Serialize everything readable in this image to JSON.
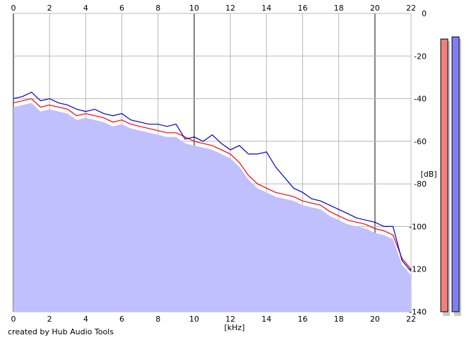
{
  "credit": "created by Hub Audio Tools",
  "colors": {
    "background": "#ffffff",
    "fill": "#c0c0ff",
    "grid_major": "#808080",
    "grid_minor": "#b8b8b8",
    "left_channel": "#ff0000",
    "right_channel": "#0000cc",
    "meter_left": "#f08080",
    "meter_right": "#8080f0"
  },
  "meters": {
    "left_level_db": -12,
    "right_level_db": -11
  },
  "chart_data": {
    "type": "area",
    "xlabel": "[kHz]",
    "ylabel": "[dB]",
    "xlim": [
      0,
      22
    ],
    "ylim": [
      -140,
      0
    ],
    "x_ticks": [
      "0",
      "2",
      "4",
      "6",
      "8",
      "10",
      "12",
      "14",
      "16",
      "18",
      "20",
      "22"
    ],
    "y_ticks": [
      "0",
      "-20",
      "-40",
      "-60",
      "-80",
      "-100",
      "-120",
      "-140"
    ],
    "grid": true,
    "x": [
      0,
      0.5,
      1,
      1.5,
      2,
      2.5,
      3,
      3.5,
      4,
      4.5,
      5,
      5.5,
      6,
      6.5,
      7,
      7.5,
      8,
      8.5,
      9,
      9.5,
      10,
      10.5,
      11,
      11.5,
      12,
      12.5,
      13,
      13.5,
      14,
      14.5,
      15,
      15.5,
      16,
      16.5,
      17,
      17.5,
      18,
      18.5,
      19,
      19.5,
      20,
      20.5,
      21,
      21.5,
      22
    ],
    "series": [
      {
        "values": [
          -42,
          -41,
          -40,
          -44,
          -43,
          -44,
          -45,
          -48,
          -47,
          -48,
          -49,
          -51,
          -50,
          -52,
          -53,
          -54,
          -55,
          -56,
          -56,
          -58,
          -60,
          -61,
          -62,
          -64,
          -66,
          -70,
          -76,
          -80,
          -82,
          -84,
          -85,
          -86,
          -88,
          -89,
          -90,
          -93,
          -95,
          -97,
          -98,
          -99,
          -101,
          -102,
          -104,
          -115,
          -120
        ]
      },
      {
        "values": [
          -40,
          -39,
          -37,
          -41,
          -40,
          -42,
          -43,
          -45,
          -46,
          -45,
          -47,
          -48,
          -47,
          -50,
          -51,
          -52,
          -52,
          -53,
          -52,
          -59,
          -58,
          -60,
          -57,
          -61,
          -64,
          -62,
          -66,
          -66,
          -65,
          -72,
          -77,
          -82,
          -84,
          -87,
          -88,
          -90,
          -92,
          -94,
          -96,
          -97,
          -98,
          -100,
          -100,
          -116,
          -121
        ]
      }
    ]
  }
}
